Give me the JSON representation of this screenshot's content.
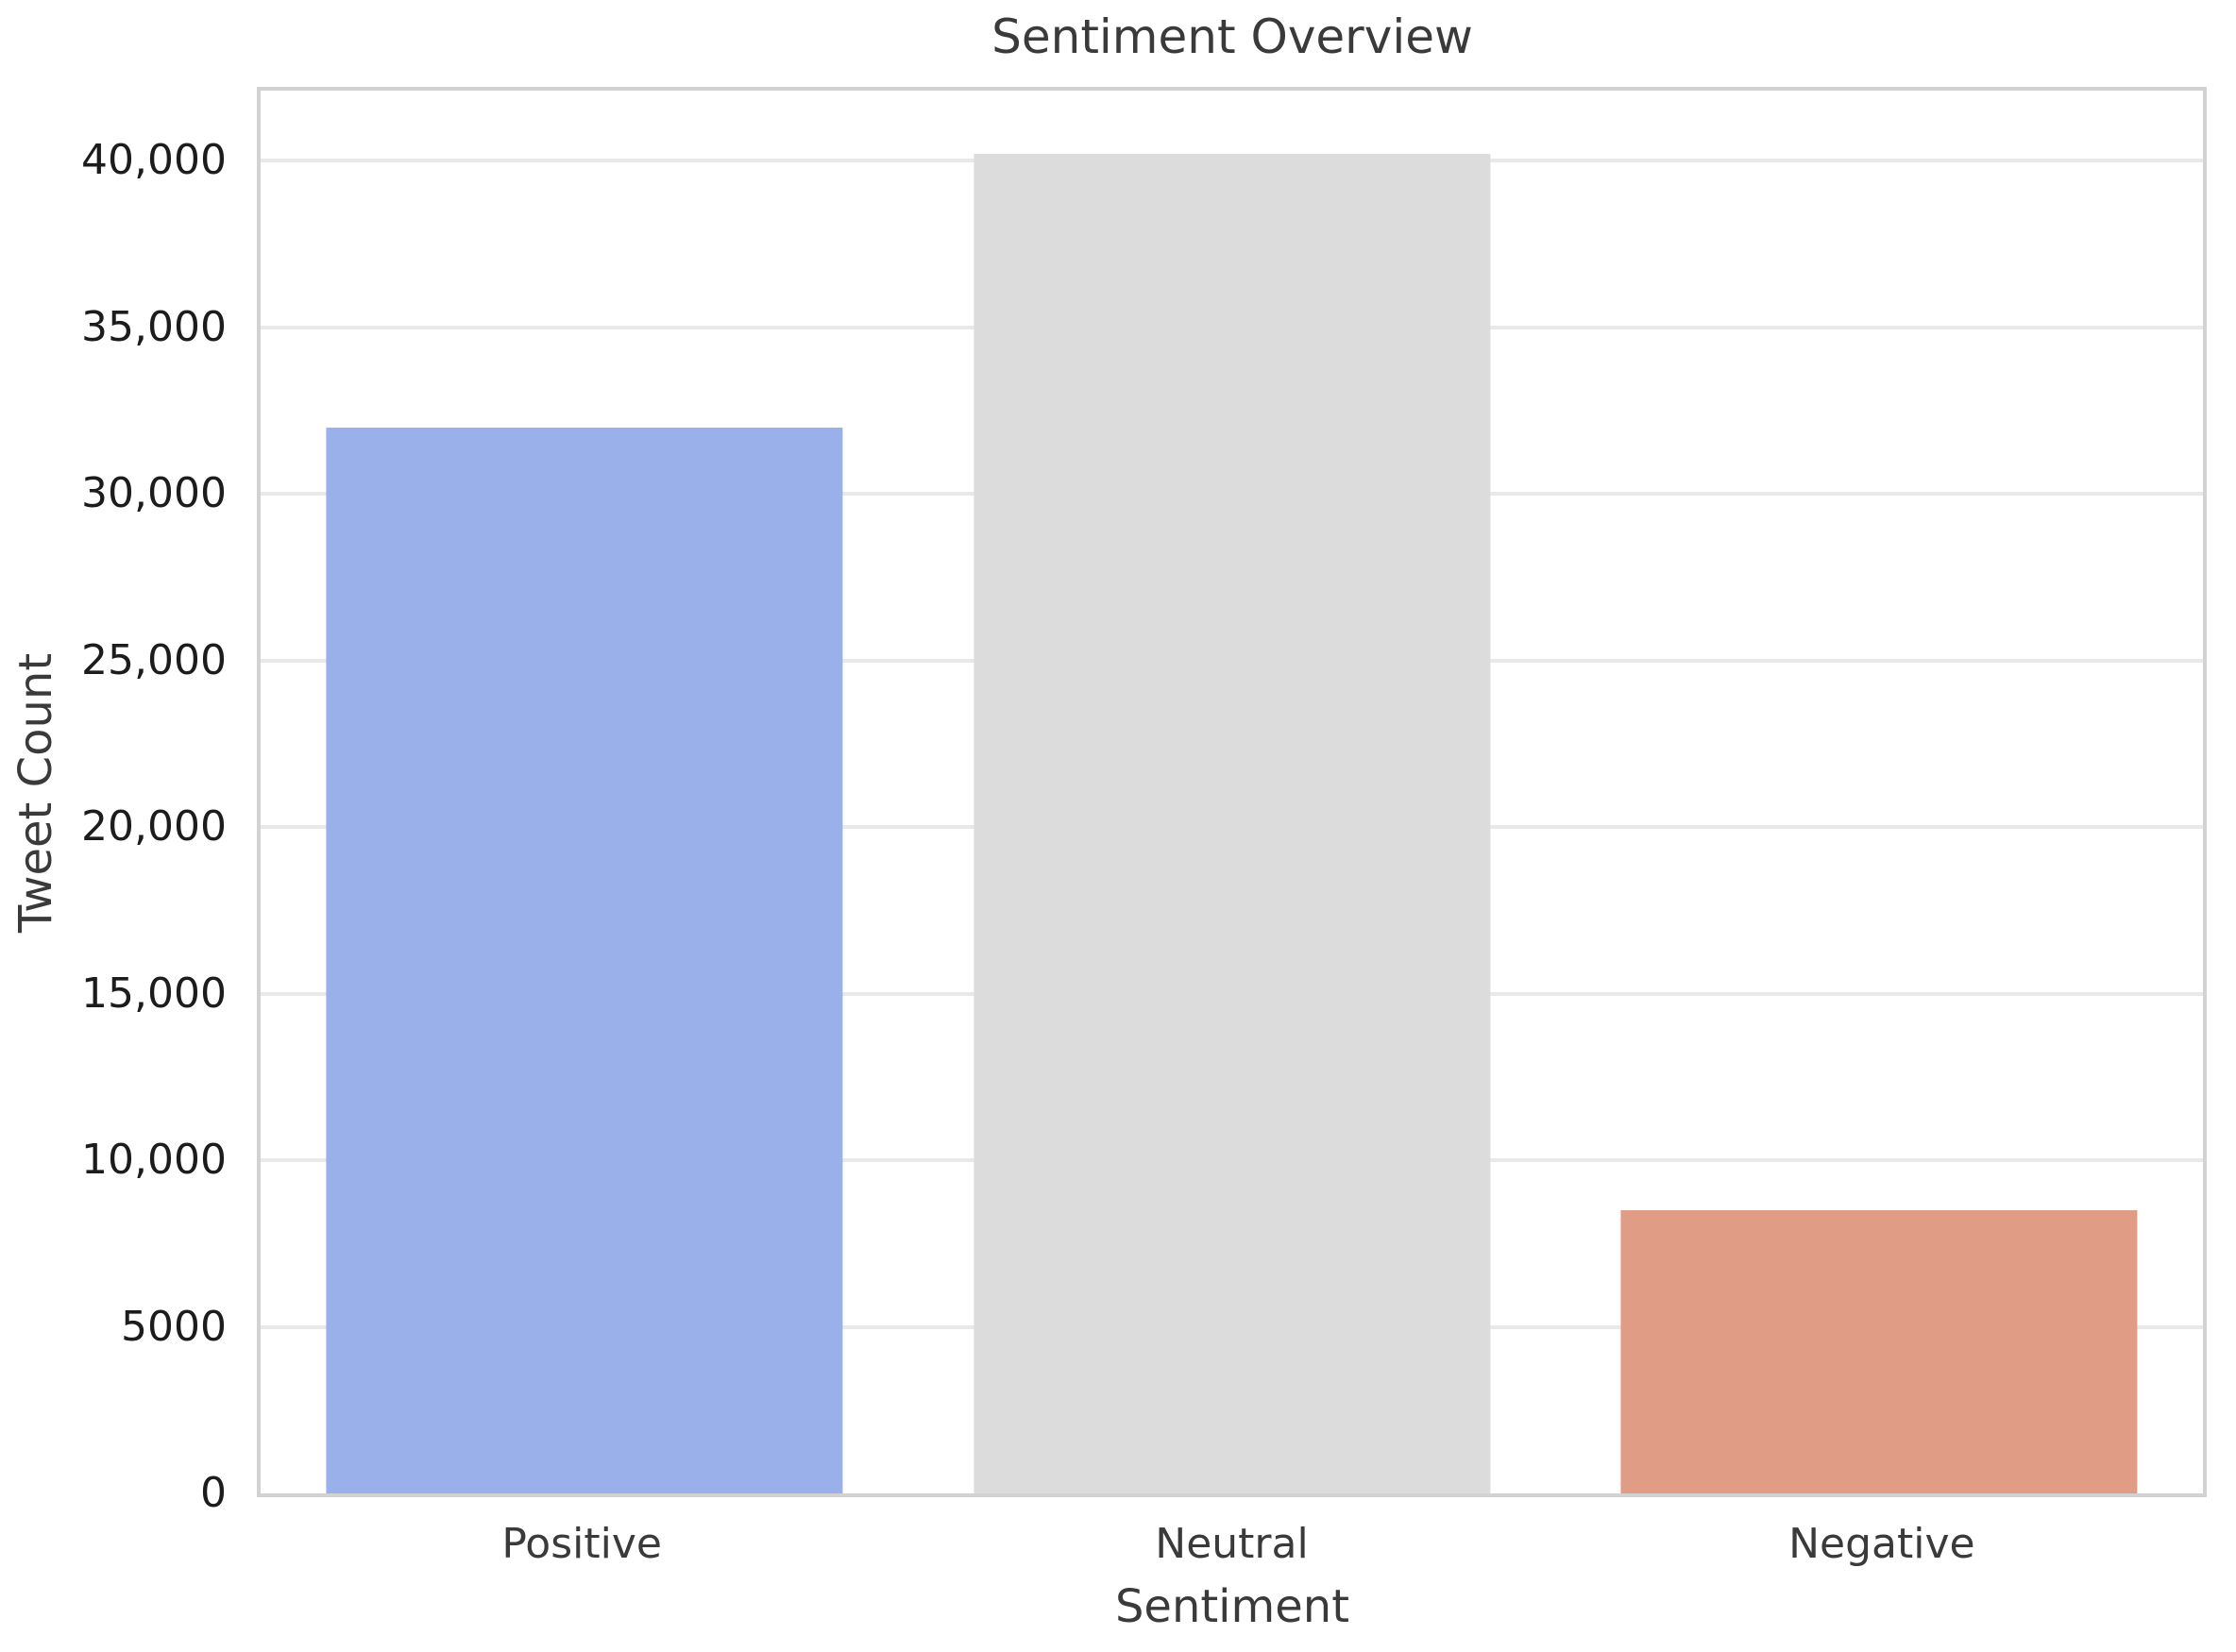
{
  "chart_data": {
    "type": "bar",
    "title": "Sentiment Overview",
    "xlabel": "Sentiment",
    "ylabel": "Tweet Count",
    "categories": [
      "Positive",
      "Neutral",
      "Negative"
    ],
    "values": [
      32000,
      40200,
      8500
    ],
    "bar_colors": [
      "#99b0ea",
      "#dcdcdc",
      "#e19c86"
    ],
    "ylim": [
      0,
      42100
    ],
    "yticks": [
      0,
      5000,
      10000,
      15000,
      20000,
      25000,
      30000,
      35000,
      40000
    ],
    "ytick_labels": [
      "0",
      "5000",
      "10,000",
      "15,000",
      "20,000",
      "25,000",
      "30,000",
      "35,000",
      "40,000"
    ],
    "grid": "horizontal-only",
    "legend": "none"
  },
  "colors": {
    "background": "#ffffff",
    "plot_spine": "#d2d2d2",
    "grid_line": "#e9e9e9",
    "tick_text": "#1c1c1c",
    "label_text": "#3a3a3a"
  }
}
